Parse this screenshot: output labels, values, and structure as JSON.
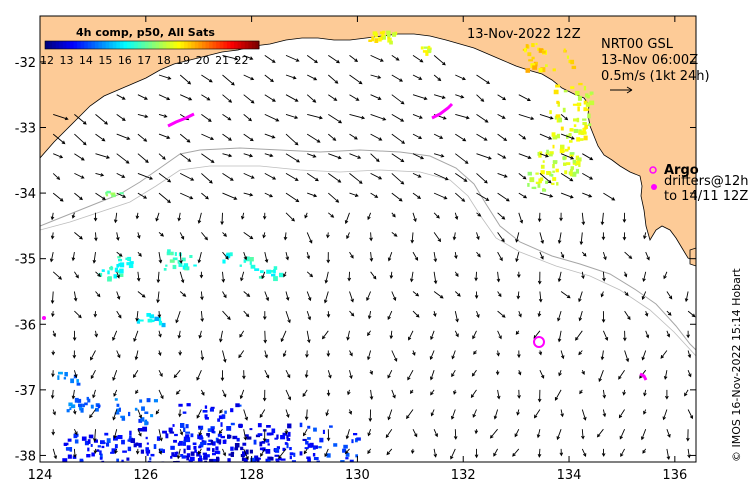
{
  "map": {
    "lon_range": [
      124,
      136.4
    ],
    "lat_range": [
      -38.1,
      -31.3
    ],
    "x_ticks": [
      124,
      126,
      128,
      130,
      132,
      134,
      136
    ],
    "y_ticks": [
      -32,
      -33,
      -34,
      -35,
      -36,
      -37,
      -38
    ],
    "x_tick_labels": [
      "124",
      "126",
      "128",
      "130",
      "132",
      "134",
      "136"
    ],
    "y_tick_labels": [
      "-32",
      "-33",
      "-34",
      "-35",
      "-36",
      "-37",
      "-38"
    ]
  },
  "colorbar": {
    "title": "4h comp, p50, All Sats",
    "range": [
      12,
      23
    ],
    "labels": [
      "12",
      "13",
      "14",
      "15",
      "16",
      "17",
      "18",
      "19",
      "20",
      "21",
      "22"
    ]
  },
  "annotations": {
    "date": "13-Nov-2022 12Z",
    "product": "NRT00 GSL",
    "product_time": "13-Nov 06:00Z",
    "scale_label": "0.5m/s (1kt 24h)"
  },
  "legend": {
    "argo_title": "Argo",
    "drifters_line1": "drifters@12h",
    "drifters_line2": "to 14/11 12Z"
  },
  "credit": "© IMOS 16-Nov-2022 15:14 Hobart",
  "colors": {
    "land": "#fdcb97",
    "ocean": "#ffffff",
    "isobath": "#a6a6a6",
    "argo": "#ff00ff",
    "arrow": "#000000"
  }
}
